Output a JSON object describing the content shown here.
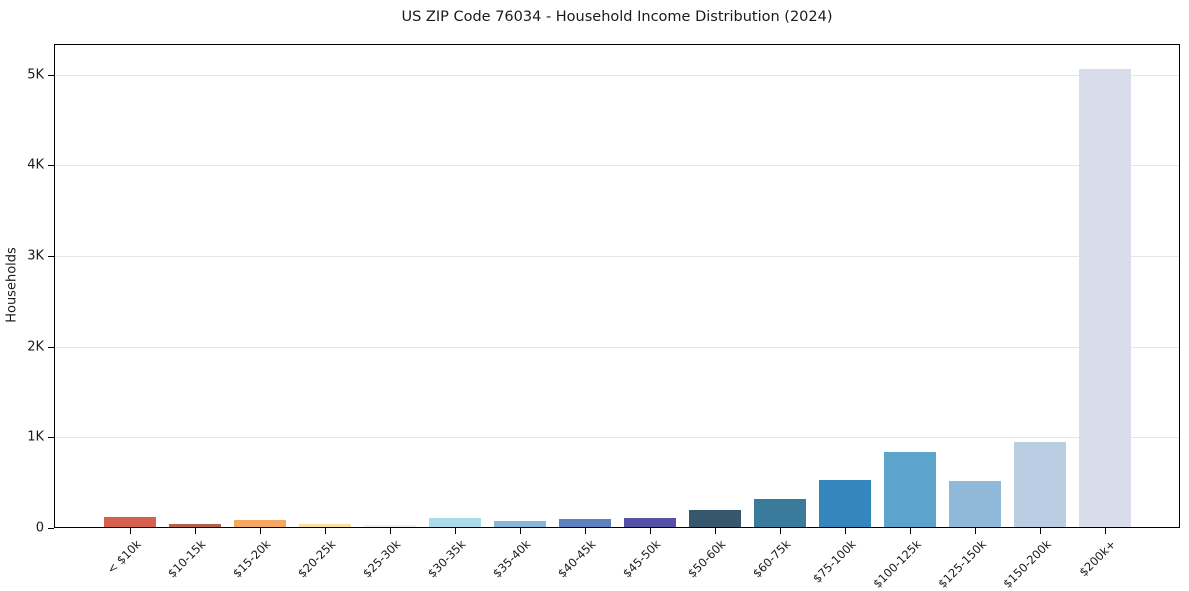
{
  "chart_data": {
    "type": "bar",
    "title": "US ZIP Code 76034 - Household Income Distribution (2024)",
    "xlabel": "",
    "ylabel": "Households",
    "categories": [
      "< $10k",
      "$10-15k",
      "$15-20k",
      "$20-25k",
      "$25-30k",
      "$30-35k",
      "$35-40k",
      "$40-45k",
      "$45-50k",
      "$50-60k",
      "$60-75k",
      "$75-100k",
      "$100-125k",
      "$125-150k",
      "$150-200k",
      "$200k+"
    ],
    "values": [
      120,
      40,
      90,
      48,
      30,
      110,
      72,
      95,
      115,
      195,
      315,
      530,
      840,
      520,
      950,
      5060
    ],
    "bar_colors": [
      "#d6604d",
      "#b85f4a",
      "#f4a862",
      "#f9e0a0",
      "#e9f3f0",
      "#abdbea",
      "#85b7d7",
      "#5d80bf",
      "#5751a5",
      "#37586c",
      "#3a7a9a",
      "#3387bc",
      "#5ca4cc",
      "#90b9d9",
      "#bacde3",
      "#d9dcea"
    ],
    "ylim": [
      0,
      5340
    ],
    "ytick_values": [
      0,
      1000,
      2000,
      3000,
      4000,
      5000
    ],
    "ytick_labels": [
      "0",
      "1K",
      "2K",
      "3K",
      "4K",
      "5K"
    ],
    "grid": "horizontal",
    "legend": "none",
    "x_tick_rotation": 45
  },
  "style": {
    "spine_color": "#000000",
    "grid_color": "#e6e6e6",
    "text_color": "#1a1a1a",
    "background": "#ffffff"
  }
}
